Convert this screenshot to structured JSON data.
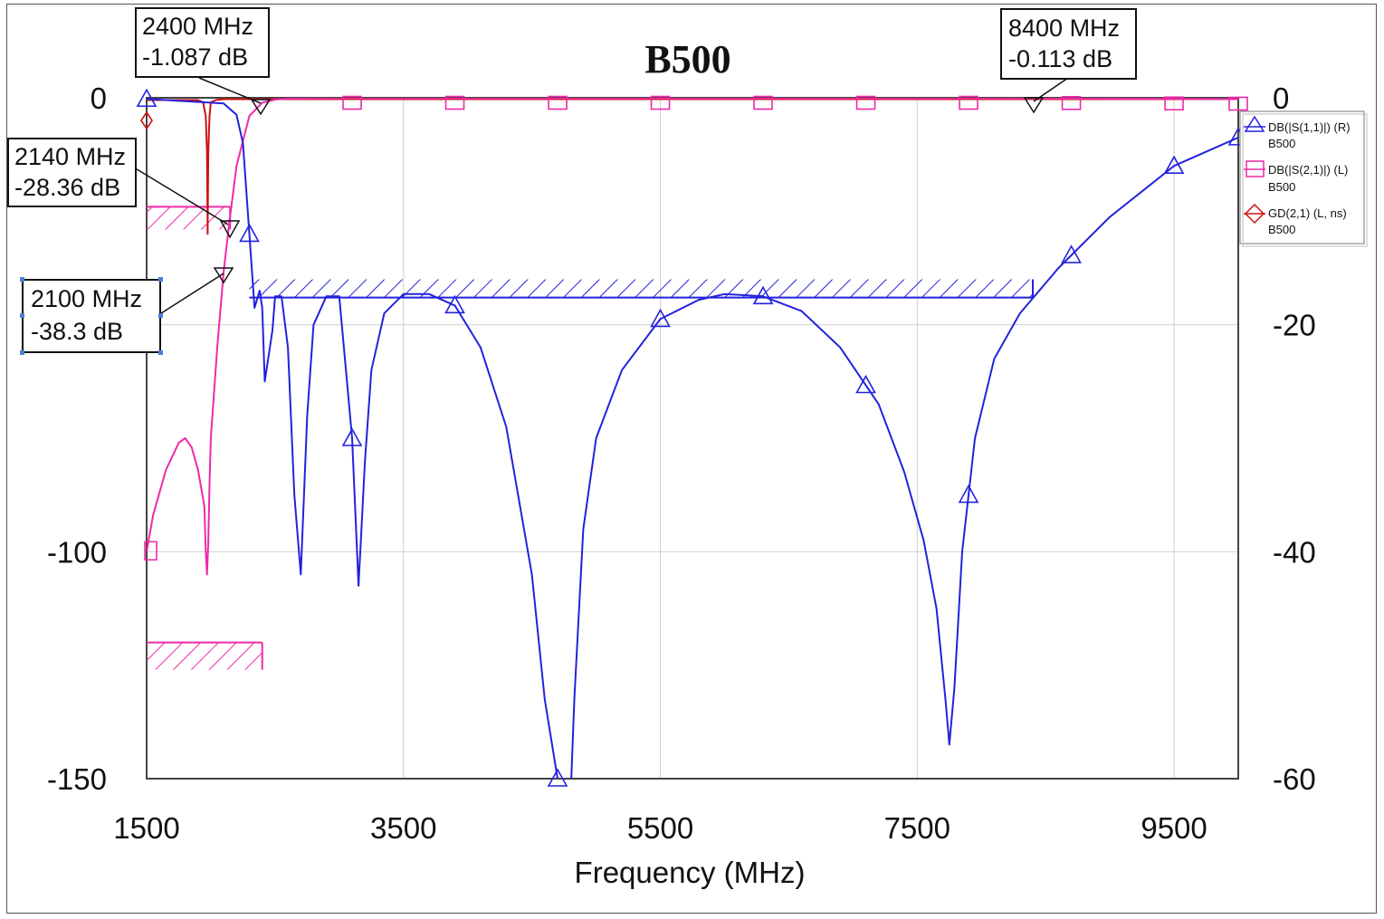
{
  "chart_data": {
    "type": "line",
    "title": "B500",
    "xlabel": "Frequency (MHz)",
    "ylabel_left": "",
    "ylabel_right": "",
    "xlim": [
      1500,
      10000
    ],
    "ylim_left": [
      -150,
      0
    ],
    "ylim_right": [
      -60,
      0
    ],
    "x_ticks": [
      1500,
      3500,
      5500,
      7500,
      9500
    ],
    "y_ticks_left": [
      0,
      -100,
      -150
    ],
    "y_ticks_right": [
      0,
      -20,
      -40,
      -60
    ],
    "grid": true,
    "colors": {
      "s11": "#2222dd",
      "s21": "#ee2aa8",
      "gd": "#cc1111"
    },
    "series": [
      {
        "name": "DB(|S(1,1)|) (R)",
        "sub": "B500",
        "axis": "right",
        "marker": "triangle",
        "x": [
          1500,
          2100,
          2200,
          2250,
          2300,
          2340,
          2380,
          2400,
          2420,
          2480,
          2500,
          2550,
          2600,
          2650,
          2700,
          2750,
          2800,
          2900,
          3000,
          3100,
          3150,
          3200,
          3250,
          3350,
          3500,
          3700,
          3900,
          4100,
          4300,
          4500,
          4600,
          4700,
          4780,
          4800,
          4830,
          4900,
          5000,
          5200,
          5500,
          5800,
          6000,
          6300,
          6600,
          6900,
          7200,
          7400,
          7550,
          7650,
          7720,
          7750,
          7790,
          7850,
          7950,
          8100,
          8300,
          8600,
          9000,
          9500,
          10000
        ],
        "y": [
          -0.1,
          -0.5,
          -1.5,
          -4,
          -12,
          -18.5,
          -17,
          -18.5,
          -25,
          -20.5,
          -17.5,
          -17.5,
          -22,
          -35,
          -42,
          -28,
          -20,
          -17.5,
          -17.5,
          -30,
          -43,
          -32,
          -24,
          -19,
          -17.3,
          -17.3,
          -18.3,
          -22,
          -29,
          -42,
          -53,
          -60,
          -65,
          -62,
          -53,
          -38,
          -30,
          -24,
          -19.5,
          -17.8,
          -17.3,
          -17.5,
          -18.8,
          -22,
          -27,
          -33,
          -39,
          -45,
          -53,
          -57,
          -52,
          -40,
          -30,
          -23,
          -19,
          -15,
          -10.5,
          -6,
          -3.5
        ]
      },
      {
        "name": "DB(|S(2,1)|) (L)",
        "sub": "B500",
        "axis": "left",
        "marker": "square",
        "x": [
          1500,
          1550,
          1650,
          1750,
          1800,
          1850,
          1900,
          1950,
          1960,
          1970,
          1980,
          1990,
          2000,
          2050,
          2100,
          2140,
          2200,
          2300,
          2400,
          2500,
          2600,
          3000,
          4000,
          5000,
          6000,
          7000,
          8000,
          8400,
          9000,
          10000
        ],
        "y": [
          -100,
          -92,
          -82,
          -76,
          -75,
          -77,
          -82,
          -90,
          -100,
          -105,
          -98,
          -85,
          -75,
          -55,
          -38.3,
          -28.36,
          -15,
          -4,
          -1.087,
          -0.4,
          -0.2,
          -0.1,
          -0.1,
          -0.1,
          -0.1,
          -0.1,
          -0.1,
          -0.113,
          -0.2,
          -0.3
        ]
      },
      {
        "name": "GD(2,1) (L, ns)",
        "sub": "B500",
        "axis": "left",
        "marker": "diamond",
        "x": [
          1500,
          1900,
          1940,
          1960,
          1970,
          1975,
          1980,
          1990,
          2000,
          2040,
          2100,
          2300,
          10000
        ],
        "y": [
          -0.5,
          -0.5,
          -1,
          -4,
          -12,
          -30,
          -12,
          -4,
          -1,
          -0.5,
          -0.3,
          -0.3,
          -0.3
        ]
      }
    ],
    "annotations": [
      {
        "freq": "2400 MHz",
        "value": "-1.087 dB"
      },
      {
        "freq": "8400 MHz",
        "value": "-0.113 dB"
      },
      {
        "freq": "2140 MHz",
        "value": "-28.36 dB"
      },
      {
        "freq": "2100 MHz",
        "value": "-38.3 dB"
      }
    ],
    "masks": [
      {
        "axis": "left",
        "x": [
          1500,
          2150
        ],
        "y": [
          -24,
          -29
        ],
        "side": "below",
        "color": "#ee2aa8"
      },
      {
        "axis": "left",
        "x": [
          1500,
          2400
        ],
        "y": [
          -120,
          -126
        ],
        "side": "below",
        "color": "#ee2aa8"
      },
      {
        "axis": "right",
        "x": [
          2300,
          8400
        ],
        "y": [
          -16,
          -17.6
        ],
        "side": "above",
        "color": "#2222dd"
      }
    ],
    "legend_position": "right"
  }
}
